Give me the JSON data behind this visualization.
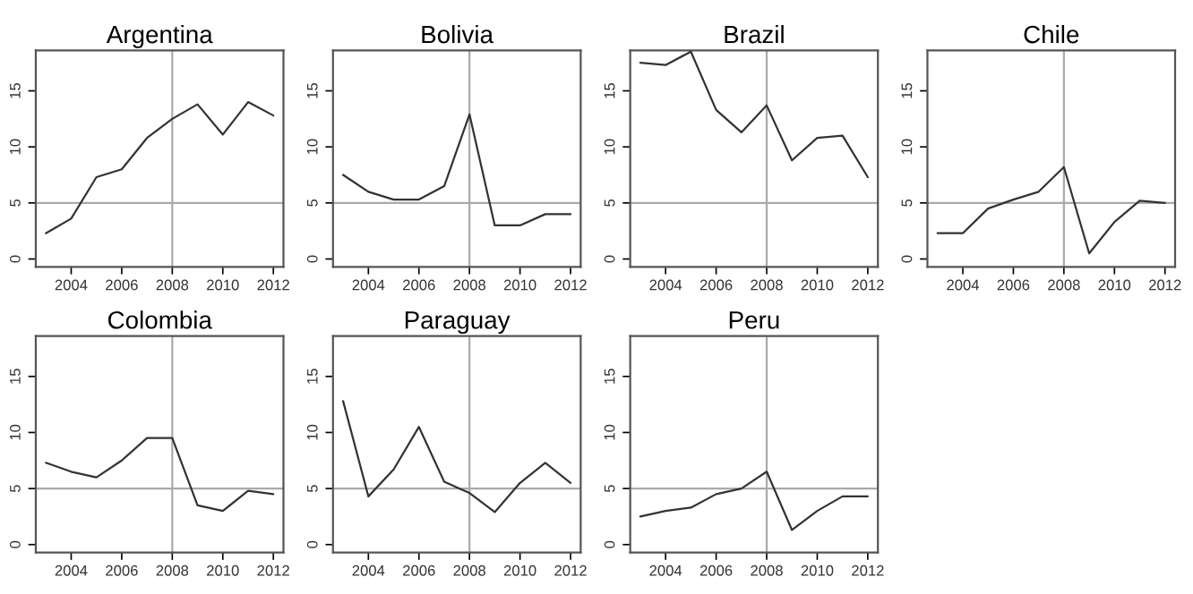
{
  "chart_data": [
    {
      "type": "line",
      "title": "Argentina",
      "x": [
        2003,
        2004,
        2005,
        2006,
        2007,
        2008,
        2009,
        2010,
        2011,
        2012
      ],
      "series": [
        {
          "color": "#333333",
          "values": [
            2.3,
            3.6,
            7.3,
            8.0,
            10.8,
            12.5,
            13.8,
            11.1,
            14.0,
            12.8
          ]
        }
      ],
      "xlim": [
        2002.6,
        2012.4
      ],
      "ylim": [
        -0.7,
        18.6
      ],
      "xticks": [
        2004,
        2006,
        2008,
        2010,
        2012
      ],
      "yticks": [
        0,
        5,
        10,
        15
      ],
      "ref_lines": [
        {
          "axis": "x",
          "value": 2008,
          "color": "#aaaaaa"
        },
        {
          "axis": "y",
          "value": 5,
          "color": "#aaaaaa"
        }
      ],
      "grid": false,
      "legend": false
    },
    {
      "type": "line",
      "title": "Bolivia",
      "x": [
        2003,
        2004,
        2005,
        2006,
        2007,
        2008,
        2009,
        2010,
        2011,
        2012
      ],
      "series": [
        {
          "color": "#333333",
          "values": [
            7.5,
            6.0,
            5.3,
            5.3,
            6.5,
            12.9,
            3.0,
            3.0,
            4.0,
            4.0
          ]
        }
      ],
      "xlim": [
        2002.6,
        2012.4
      ],
      "ylim": [
        -0.7,
        18.6
      ],
      "xticks": [
        2004,
        2006,
        2008,
        2010,
        2012
      ],
      "yticks": [
        0,
        5,
        10,
        15
      ],
      "ref_lines": [
        {
          "axis": "x",
          "value": 2008,
          "color": "#aaaaaa"
        },
        {
          "axis": "y",
          "value": 5,
          "color": "#aaaaaa"
        }
      ],
      "grid": false,
      "legend": false
    },
    {
      "type": "line",
      "title": "Brazil",
      "x": [
        2003,
        2004,
        2005,
        2006,
        2007,
        2008,
        2009,
        2010,
        2011,
        2012
      ],
      "series": [
        {
          "color": "#333333",
          "values": [
            17.5,
            17.3,
            18.5,
            13.3,
            11.3,
            13.7,
            8.8,
            10.8,
            11.0,
            7.3
          ]
        }
      ],
      "xlim": [
        2002.6,
        2012.4
      ],
      "ylim": [
        -0.7,
        18.6
      ],
      "xticks": [
        2004,
        2006,
        2008,
        2010,
        2012
      ],
      "yticks": [
        0,
        5,
        10,
        15
      ],
      "ref_lines": [
        {
          "axis": "x",
          "value": 2008,
          "color": "#aaaaaa"
        },
        {
          "axis": "y",
          "value": 5,
          "color": "#aaaaaa"
        }
      ],
      "grid": false,
      "legend": false
    },
    {
      "type": "line",
      "title": "Chile",
      "x": [
        2003,
        2004,
        2005,
        2006,
        2007,
        2008,
        2009,
        2010,
        2011,
        2012
      ],
      "series": [
        {
          "color": "#333333",
          "values": [
            2.3,
            2.3,
            4.5,
            5.3,
            6.0,
            8.2,
            0.5,
            3.3,
            5.2,
            5.0
          ]
        }
      ],
      "xlim": [
        2002.6,
        2012.4
      ],
      "ylim": [
        -0.7,
        18.6
      ],
      "xticks": [
        2004,
        2006,
        2008,
        2010,
        2012
      ],
      "yticks": [
        0,
        5,
        10,
        15
      ],
      "ref_lines": [
        {
          "axis": "x",
          "value": 2008,
          "color": "#aaaaaa"
        },
        {
          "axis": "y",
          "value": 5,
          "color": "#aaaaaa"
        }
      ],
      "grid": false,
      "legend": false
    },
    {
      "type": "line",
      "title": "Colombia",
      "x": [
        2003,
        2004,
        2005,
        2006,
        2007,
        2008,
        2009,
        2010,
        2011,
        2012
      ],
      "series": [
        {
          "color": "#333333",
          "values": [
            7.3,
            6.5,
            6.0,
            7.5,
            9.5,
            9.5,
            3.5,
            3.0,
            4.8,
            4.5
          ]
        }
      ],
      "xlim": [
        2002.6,
        2012.4
      ],
      "ylim": [
        -0.7,
        18.6
      ],
      "xticks": [
        2004,
        2006,
        2008,
        2010,
        2012
      ],
      "yticks": [
        0,
        5,
        10,
        15
      ],
      "ref_lines": [
        {
          "axis": "x",
          "value": 2008,
          "color": "#aaaaaa"
        },
        {
          "axis": "y",
          "value": 5,
          "color": "#aaaaaa"
        }
      ],
      "grid": false,
      "legend": false
    },
    {
      "type": "line",
      "title": "Paraguay",
      "x": [
        2003,
        2004,
        2005,
        2006,
        2007,
        2008,
        2009,
        2010,
        2011,
        2012
      ],
      "series": [
        {
          "color": "#333333",
          "values": [
            12.8,
            4.3,
            6.7,
            10.5,
            5.6,
            4.6,
            2.9,
            5.5,
            7.3,
            5.5
          ]
        }
      ],
      "xlim": [
        2002.6,
        2012.4
      ],
      "ylim": [
        -0.7,
        18.6
      ],
      "xticks": [
        2004,
        2006,
        2008,
        2010,
        2012
      ],
      "yticks": [
        0,
        5,
        10,
        15
      ],
      "ref_lines": [
        {
          "axis": "x",
          "value": 2008,
          "color": "#aaaaaa"
        },
        {
          "axis": "y",
          "value": 5,
          "color": "#aaaaaa"
        }
      ],
      "grid": false,
      "legend": false
    },
    {
      "type": "line",
      "title": "Peru",
      "x": [
        2003,
        2004,
        2005,
        2006,
        2007,
        2008,
        2009,
        2010,
        2011,
        2012
      ],
      "series": [
        {
          "color": "#333333",
          "values": [
            2.5,
            3.0,
            3.3,
            4.5,
            5.0,
            6.5,
            1.3,
            3.0,
            4.3,
            4.3
          ]
        }
      ],
      "xlim": [
        2002.6,
        2012.4
      ],
      "ylim": [
        -0.7,
        18.6
      ],
      "xticks": [
        2004,
        2006,
        2008,
        2010,
        2012
      ],
      "yticks": [
        0,
        5,
        10,
        15
      ],
      "ref_lines": [
        {
          "axis": "x",
          "value": 2008,
          "color": "#aaaaaa"
        },
        {
          "axis": "y",
          "value": 5,
          "color": "#aaaaaa"
        }
      ],
      "grid": false,
      "legend": false
    }
  ]
}
